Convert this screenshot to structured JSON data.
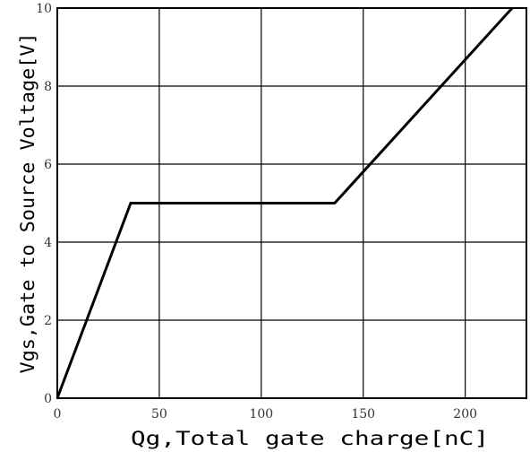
{
  "chart_data": {
    "type": "line",
    "title": "",
    "xlabel": "Qg,Total gate charge[nC]",
    "ylabel": "Vgs,Gate to Source Voltage[V]",
    "xlim": [
      0,
      230
    ],
    "ylim": [
      0,
      10
    ],
    "xticks": [
      0,
      50,
      100,
      150,
      200
    ],
    "yticks": [
      0,
      2,
      4,
      6,
      8,
      10
    ],
    "xtick_labels": [
      "0",
      "50",
      "100",
      "150",
      "200"
    ],
    "ytick_labels": [
      "0",
      "2",
      "4",
      "6",
      "8",
      "10"
    ],
    "grid": true,
    "series": [
      {
        "x": [
          0,
          36,
          136,
          223
        ],
        "y": [
          0,
          5,
          5,
          10
        ]
      }
    ],
    "colors": {
      "line": "#000000",
      "grid": "#000000",
      "frame": "#000000"
    }
  }
}
